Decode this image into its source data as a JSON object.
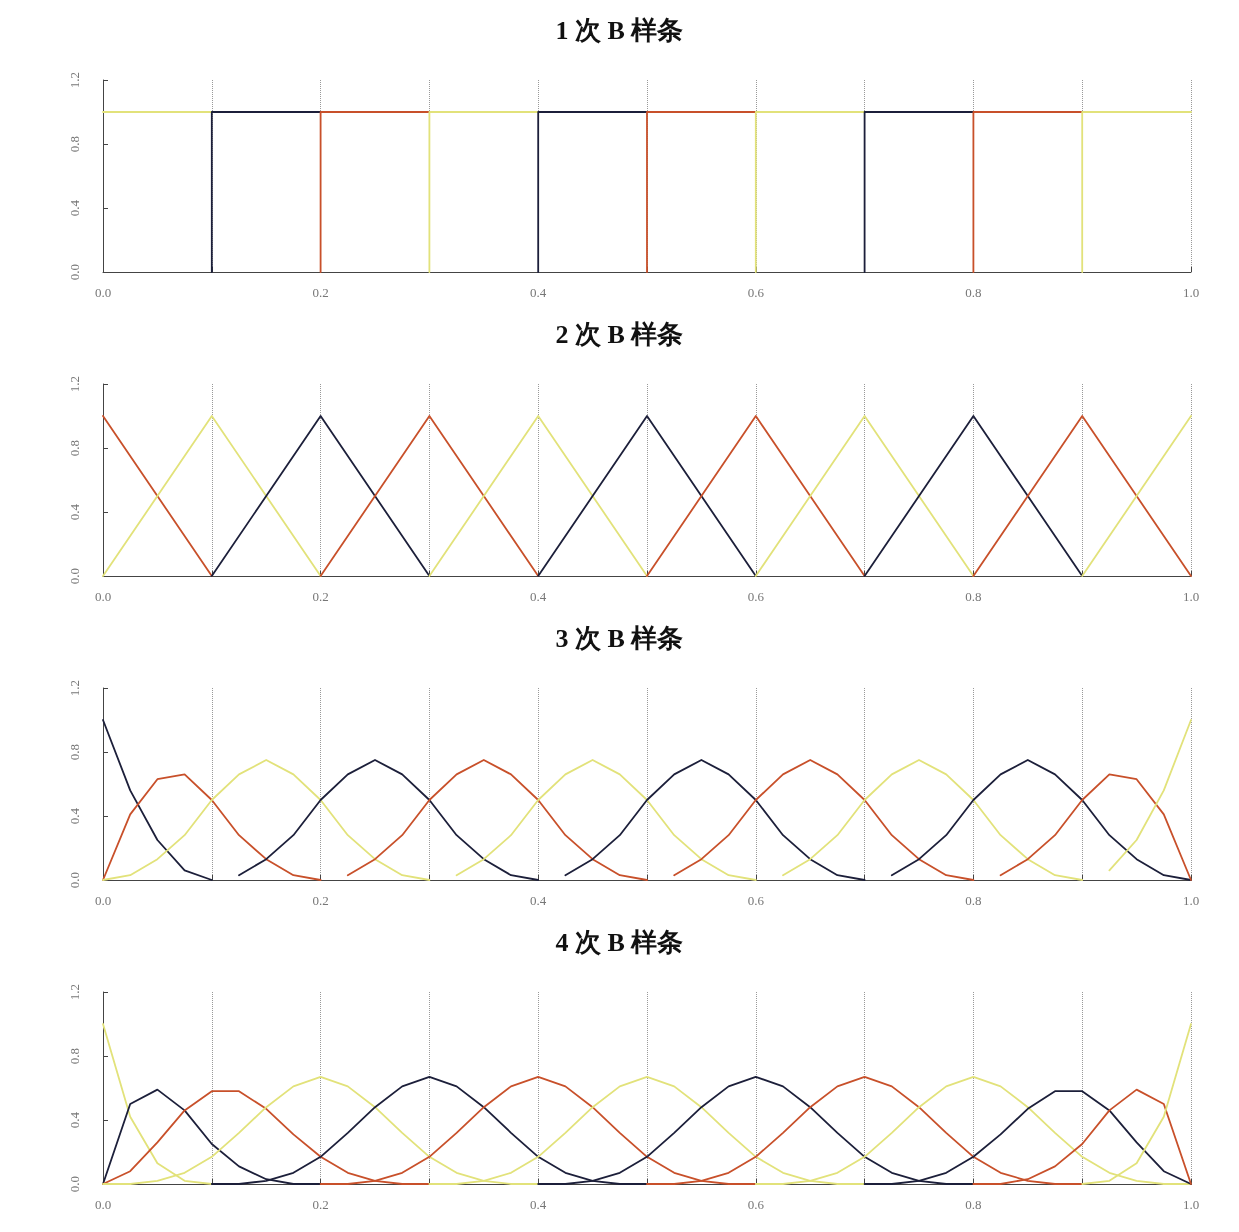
{
  "chart_data": [
    {
      "type": "step",
      "title": "1 次 B 样条",
      "xlim": [
        0,
        1
      ],
      "ylim": [
        0,
        1.2
      ],
      "grid": "x",
      "marker": "none",
      "line_style": "solid",
      "xticks": [
        {
          "value": 0,
          "label": "0.0"
        },
        {
          "value": 0.1,
          "label": null
        },
        {
          "value": 0.2,
          "label": "0.2"
        },
        {
          "value": 0.3,
          "label": null
        },
        {
          "value": 0.4,
          "label": "0.4"
        },
        {
          "value": 0.5,
          "label": null
        },
        {
          "value": 0.6,
          "label": "0.6"
        },
        {
          "value": 0.7,
          "label": null
        },
        {
          "value": 0.8,
          "label": "0.8"
        },
        {
          "value": 0.9,
          "label": null
        },
        {
          "value": 1,
          "label": "1.0"
        }
      ],
      "yticks": [
        {
          "value": 0,
          "label": "0.0"
        },
        {
          "value": 0.4,
          "label": "0.4"
        },
        {
          "value": 0.8,
          "label": "0.8"
        },
        {
          "value": 1.2,
          "label": "1.2"
        }
      ],
      "series": [
        {
          "color": "#e2e27a",
          "x": [
            0,
            0.1
          ],
          "values": [
            1,
            1
          ]
        },
        {
          "color": "#1c1f3a",
          "x": [
            0.1,
            0.2
          ],
          "values": [
            0,
            1
          ]
        },
        {
          "color": "#c8502a",
          "x": [
            0.2,
            0.3
          ],
          "values": [
            0,
            1
          ]
        },
        {
          "color": "#e2e27a",
          "x": [
            0.3,
            0.4
          ],
          "values": [
            0,
            1
          ]
        },
        {
          "color": "#1c1f3a",
          "x": [
            0.4,
            0.5
          ],
          "values": [
            0,
            1
          ]
        },
        {
          "color": "#c8502a",
          "x": [
            0.5,
            0.6
          ],
          "values": [
            0,
            1
          ]
        },
        {
          "color": "#e2e27a",
          "x": [
            0.6,
            0.7
          ],
          "values": [
            0,
            1
          ]
        },
        {
          "color": "#1c1f3a",
          "x": [
            0.7,
            0.8
          ],
          "values": [
            0,
            1
          ]
        },
        {
          "color": "#c8502a",
          "x": [
            0.8,
            0.9
          ],
          "values": [
            0,
            1
          ]
        },
        {
          "color": "#e2e27a",
          "x": [
            0.9,
            1
          ],
          "values": [
            0,
            1
          ]
        }
      ]
    },
    {
      "type": "line",
      "title": "2 次 B 样条",
      "xlim": [
        0,
        1
      ],
      "ylim": [
        0,
        1.2
      ],
      "grid": "x",
      "marker": "none",
      "line_style": "solid",
      "xticks": [
        {
          "value": 0,
          "label": "0.0"
        },
        {
          "value": 0.1,
          "label": null
        },
        {
          "value": 0.2,
          "label": "0.2"
        },
        {
          "value": 0.3,
          "label": null
        },
        {
          "value": 0.4,
          "label": "0.4"
        },
        {
          "value": 0.5,
          "label": null
        },
        {
          "value": 0.6,
          "label": "0.6"
        },
        {
          "value": 0.7,
          "label": null
        },
        {
          "value": 0.8,
          "label": "0.8"
        },
        {
          "value": 0.9,
          "label": null
        },
        {
          "value": 1,
          "label": "1.0"
        }
      ],
      "yticks": [
        {
          "value": 0,
          "label": "0.0"
        },
        {
          "value": 0.4,
          "label": "0.4"
        },
        {
          "value": 0.8,
          "label": "0.8"
        },
        {
          "value": 1.2,
          "label": "1.2"
        }
      ],
      "series": [
        {
          "color": "#c8502a",
          "x": [
            0,
            0.1
          ],
          "values": [
            1,
            0
          ]
        },
        {
          "color": "#e2e27a",
          "x": [
            0,
            0.1,
            0.2
          ],
          "values": [
            0,
            1,
            0
          ]
        },
        {
          "color": "#1c1f3a",
          "x": [
            0.1,
            0.2,
            0.3
          ],
          "values": [
            0,
            1,
            0
          ]
        },
        {
          "color": "#c8502a",
          "x": [
            0.2,
            0.3,
            0.4
          ],
          "values": [
            0,
            1,
            0
          ]
        },
        {
          "color": "#e2e27a",
          "x": [
            0.3,
            0.4,
            0.5
          ],
          "values": [
            0,
            1,
            0
          ]
        },
        {
          "color": "#1c1f3a",
          "x": [
            0.4,
            0.5,
            0.6
          ],
          "values": [
            0,
            1,
            0
          ]
        },
        {
          "color": "#c8502a",
          "x": [
            0.5,
            0.6,
            0.7
          ],
          "values": [
            0,
            1,
            0
          ]
        },
        {
          "color": "#e2e27a",
          "x": [
            0.6,
            0.7,
            0.8
          ],
          "values": [
            0,
            1,
            0
          ]
        },
        {
          "color": "#1c1f3a",
          "x": [
            0.7,
            0.8,
            0.9
          ],
          "values": [
            0,
            1,
            0
          ]
        },
        {
          "color": "#c8502a",
          "x": [
            0.8,
            0.9,
            1
          ],
          "values": [
            0,
            1,
            0
          ]
        },
        {
          "color": "#e2e27a",
          "x": [
            0.9,
            1
          ],
          "values": [
            0,
            1
          ]
        }
      ]
    },
    {
      "type": "line",
      "title": "3 次 B 样条",
      "xlim": [
        0,
        1
      ],
      "ylim": [
        0,
        1.2
      ],
      "grid": "x",
      "marker": "none",
      "line_style": "solid",
      "xticks": [
        {
          "value": 0,
          "label": "0.0"
        },
        {
          "value": 0.1,
          "label": null
        },
        {
          "value": 0.2,
          "label": "0.2"
        },
        {
          "value": 0.3,
          "label": null
        },
        {
          "value": 0.4,
          "label": "0.4"
        },
        {
          "value": 0.5,
          "label": null
        },
        {
          "value": 0.6,
          "label": "0.6"
        },
        {
          "value": 0.7,
          "label": null
        },
        {
          "value": 0.8,
          "label": "0.8"
        },
        {
          "value": 0.9,
          "label": null
        },
        {
          "value": 1,
          "label": "1.0"
        }
      ],
      "yticks": [
        {
          "value": 0,
          "label": "0.0"
        },
        {
          "value": 0.4,
          "label": "0.4"
        },
        {
          "value": 0.8,
          "label": "0.8"
        },
        {
          "value": 1.2,
          "label": "1.2"
        }
      ],
      "series": [
        {
          "color": "#1c1f3a",
          "x": [
            0,
            0.025,
            0.05,
            0.075,
            0.1
          ],
          "values": [
            1,
            0.56,
            0.25,
            0.06,
            0
          ]
        },
        {
          "color": "#c8502a",
          "x": [
            0,
            0.025,
            0.05,
            0.075,
            0.1,
            0.125,
            0.15,
            0.175,
            0.2
          ],
          "values": [
            0,
            0.41,
            0.63,
            0.66,
            0.5,
            0.28,
            0.13,
            0.03,
            0
          ]
        },
        {
          "color": "#e2e27a",
          "x": [
            0,
            0.025,
            0.05,
            0.075,
            0.1,
            0.125,
            0.15,
            0.175,
            0.2,
            0.225,
            0.25,
            0.275,
            0.3
          ],
          "values": [
            0,
            0.03,
            0.13,
            0.28,
            0.5,
            0.66,
            0.75,
            0.66,
            0.5,
            0.28,
            0.13,
            0.03,
            0
          ]
        },
        {
          "color": "#1c1f3a",
          "x": [
            0.125,
            0.15,
            0.175,
            0.2,
            0.225,
            0.25,
            0.275,
            0.3,
            0.325,
            0.35,
            0.375,
            0.4
          ],
          "values": [
            0.03,
            0.13,
            0.28,
            0.5,
            0.66,
            0.75,
            0.66,
            0.5,
            0.28,
            0.13,
            0.03,
            0
          ]
        },
        {
          "color": "#c8502a",
          "x": [
            0.225,
            0.25,
            0.275,
            0.3,
            0.325,
            0.35,
            0.375,
            0.4,
            0.425,
            0.45,
            0.475,
            0.5
          ],
          "values": [
            0.03,
            0.13,
            0.28,
            0.5,
            0.66,
            0.75,
            0.66,
            0.5,
            0.28,
            0.13,
            0.03,
            0
          ]
        },
        {
          "color": "#e2e27a",
          "x": [
            0.325,
            0.35,
            0.375,
            0.4,
            0.425,
            0.45,
            0.475,
            0.5,
            0.525,
            0.55,
            0.575,
            0.6
          ],
          "values": [
            0.03,
            0.13,
            0.28,
            0.5,
            0.66,
            0.75,
            0.66,
            0.5,
            0.28,
            0.13,
            0.03,
            0
          ]
        },
        {
          "color": "#1c1f3a",
          "x": [
            0.425,
            0.45,
            0.475,
            0.5,
            0.525,
            0.55,
            0.575,
            0.6,
            0.625,
            0.65,
            0.675,
            0.7
          ],
          "values": [
            0.03,
            0.13,
            0.28,
            0.5,
            0.66,
            0.75,
            0.66,
            0.5,
            0.28,
            0.13,
            0.03,
            0
          ]
        },
        {
          "color": "#c8502a",
          "x": [
            0.525,
            0.55,
            0.575,
            0.6,
            0.625,
            0.65,
            0.675,
            0.7,
            0.725,
            0.75,
            0.775,
            0.8
          ],
          "values": [
            0.03,
            0.13,
            0.28,
            0.5,
            0.66,
            0.75,
            0.66,
            0.5,
            0.28,
            0.13,
            0.03,
            0
          ]
        },
        {
          "color": "#e2e27a",
          "x": [
            0.625,
            0.65,
            0.675,
            0.7,
            0.725,
            0.75,
            0.775,
            0.8,
            0.825,
            0.85,
            0.875,
            0.9
          ],
          "values": [
            0.03,
            0.13,
            0.28,
            0.5,
            0.66,
            0.75,
            0.66,
            0.5,
            0.28,
            0.13,
            0.03,
            0
          ]
        },
        {
          "color": "#1c1f3a",
          "x": [
            0.725,
            0.75,
            0.775,
            0.8,
            0.825,
            0.85,
            0.875,
            0.9,
            0.925,
            0.95,
            0.975,
            1
          ],
          "values": [
            0.03,
            0.13,
            0.28,
            0.5,
            0.66,
            0.75,
            0.66,
            0.5,
            0.28,
            0.13,
            0.03,
            0
          ]
        },
        {
          "color": "#c8502a",
          "x": [
            0.825,
            0.85,
            0.875,
            0.9,
            0.925,
            0.95,
            0.975,
            1
          ],
          "values": [
            0.03,
            0.13,
            0.28,
            0.5,
            0.66,
            0.63,
            0.41,
            0
          ]
        },
        {
          "color": "#e2e27a",
          "x": [
            0.925,
            0.95,
            0.975,
            1
          ],
          "values": [
            0.06,
            0.25,
            0.56,
            1
          ]
        }
      ]
    },
    {
      "type": "line",
      "title": "4 次 B 样条",
      "xlim": [
        0,
        1
      ],
      "ylim": [
        0,
        1.2
      ],
      "grid": "x",
      "marker": "none",
      "line_style": "solid",
      "xticks": [
        {
          "value": 0,
          "label": "0.0"
        },
        {
          "value": 0.1,
          "label": null
        },
        {
          "value": 0.2,
          "label": "0.2"
        },
        {
          "value": 0.3,
          "label": null
        },
        {
          "value": 0.4,
          "label": "0.4"
        },
        {
          "value": 0.5,
          "label": null
        },
        {
          "value": 0.6,
          "label": "0.6"
        },
        {
          "value": 0.7,
          "label": null
        },
        {
          "value": 0.8,
          "label": "0.8"
        },
        {
          "value": 0.9,
          "label": null
        },
        {
          "value": 1,
          "label": "1.0"
        }
      ],
      "yticks": [
        {
          "value": 0,
          "label": "0.0"
        },
        {
          "value": 0.4,
          "label": "0.4"
        },
        {
          "value": 0.8,
          "label": "0.8"
        },
        {
          "value": 1.2,
          "label": "1.2"
        }
      ],
      "series": [
        {
          "color": "#e2e27a",
          "x": [
            0,
            0.025,
            0.05,
            0.075,
            0.1
          ],
          "values": [
            1,
            0.42,
            0.13,
            0.02,
            0
          ]
        },
        {
          "color": "#1c1f3a",
          "x": [
            0,
            0.025,
            0.05,
            0.075,
            0.1,
            0.125,
            0.15,
            0.175,
            0.2
          ],
          "values": [
            0,
            0.5,
            0.59,
            0.46,
            0.25,
            0.11,
            0.03,
            0,
            0
          ]
        },
        {
          "color": "#c8502a",
          "x": [
            0,
            0.025,
            0.05,
            0.075,
            0.1,
            0.125,
            0.15,
            0.175,
            0.2,
            0.225,
            0.25,
            0.275,
            0.3
          ],
          "values": [
            0,
            0.08,
            0.26,
            0.46,
            0.58,
            0.58,
            0.47,
            0.31,
            0.17,
            0.07,
            0.02,
            0,
            0
          ]
        },
        {
          "color": "#e2e27a",
          "x": [
            0,
            0.025,
            0.05,
            0.075,
            0.1,
            0.125,
            0.15,
            0.175,
            0.2,
            0.225,
            0.25,
            0.275,
            0.3,
            0.325,
            0.35,
            0.375,
            0.4
          ],
          "values": [
            0,
            0,
            0.02,
            0.07,
            0.17,
            0.32,
            0.48,
            0.61,
            0.67,
            0.61,
            0.48,
            0.32,
            0.17,
            0.07,
            0.02,
            0,
            0
          ]
        },
        {
          "color": "#1c1f3a",
          "x": [
            0.1,
            0.125,
            0.15,
            0.175,
            0.2,
            0.225,
            0.25,
            0.275,
            0.3,
            0.325,
            0.35,
            0.375,
            0.4,
            0.425,
            0.45,
            0.475,
            0.5
          ],
          "values": [
            0,
            0,
            0.02,
            0.07,
            0.17,
            0.32,
            0.48,
            0.61,
            0.67,
            0.61,
            0.48,
            0.32,
            0.17,
            0.07,
            0.02,
            0,
            0
          ]
        },
        {
          "color": "#c8502a",
          "x": [
            0.2,
            0.225,
            0.25,
            0.275,
            0.3,
            0.325,
            0.35,
            0.375,
            0.4,
            0.425,
            0.45,
            0.475,
            0.5,
            0.525,
            0.55,
            0.575,
            0.6
          ],
          "values": [
            0,
            0,
            0.02,
            0.07,
            0.17,
            0.32,
            0.48,
            0.61,
            0.67,
            0.61,
            0.48,
            0.32,
            0.17,
            0.07,
            0.02,
            0,
            0
          ]
        },
        {
          "color": "#e2e27a",
          "x": [
            0.3,
            0.325,
            0.35,
            0.375,
            0.4,
            0.425,
            0.45,
            0.475,
            0.5,
            0.525,
            0.55,
            0.575,
            0.6,
            0.625,
            0.65,
            0.675,
            0.7
          ],
          "values": [
            0,
            0,
            0.02,
            0.07,
            0.17,
            0.32,
            0.48,
            0.61,
            0.67,
            0.61,
            0.48,
            0.32,
            0.17,
            0.07,
            0.02,
            0,
            0
          ]
        },
        {
          "color": "#1c1f3a",
          "x": [
            0.4,
            0.425,
            0.45,
            0.475,
            0.5,
            0.525,
            0.55,
            0.575,
            0.6,
            0.625,
            0.65,
            0.675,
            0.7,
            0.725,
            0.75,
            0.775,
            0.8
          ],
          "values": [
            0,
            0,
            0.02,
            0.07,
            0.17,
            0.32,
            0.48,
            0.61,
            0.67,
            0.61,
            0.48,
            0.32,
            0.17,
            0.07,
            0.02,
            0,
            0
          ]
        },
        {
          "color": "#c8502a",
          "x": [
            0.5,
            0.525,
            0.55,
            0.575,
            0.6,
            0.625,
            0.65,
            0.675,
            0.7,
            0.725,
            0.75,
            0.775,
            0.8,
            0.825,
            0.85,
            0.875,
            0.9
          ],
          "values": [
            0,
            0,
            0.02,
            0.07,
            0.17,
            0.32,
            0.48,
            0.61,
            0.67,
            0.61,
            0.48,
            0.32,
            0.17,
            0.07,
            0.02,
            0,
            0
          ]
        },
        {
          "color": "#e2e27a",
          "x": [
            0.6,
            0.625,
            0.65,
            0.675,
            0.7,
            0.725,
            0.75,
            0.775,
            0.8,
            0.825,
            0.85,
            0.875,
            0.9,
            0.925,
            0.95,
            0.975,
            1
          ],
          "values": [
            0,
            0,
            0.02,
            0.07,
            0.17,
            0.32,
            0.48,
            0.61,
            0.67,
            0.61,
            0.48,
            0.32,
            0.17,
            0.07,
            0.02,
            0,
            0
          ]
        },
        {
          "color": "#1c1f3a",
          "x": [
            0.7,
            0.725,
            0.75,
            0.775,
            0.8,
            0.825,
            0.85,
            0.875,
            0.9,
            0.925,
            0.95,
            0.975,
            1
          ],
          "values": [
            0,
            0,
            0.02,
            0.07,
            0.17,
            0.31,
            0.47,
            0.58,
            0.58,
            0.46,
            0.26,
            0.08,
            0
          ]
        },
        {
          "color": "#c8502a",
          "x": [
            0.8,
            0.825,
            0.85,
            0.875,
            0.9,
            0.925,
            0.95,
            0.975,
            1
          ],
          "values": [
            0,
            0,
            0.03,
            0.11,
            0.25,
            0.46,
            0.59,
            0.5,
            0
          ]
        },
        {
          "color": "#e2e27a",
          "x": [
            0.9,
            0.925,
            0.95,
            0.975,
            1
          ],
          "values": [
            0,
            0.02,
            0.13,
            0.42,
            1
          ]
        }
      ]
    }
  ]
}
